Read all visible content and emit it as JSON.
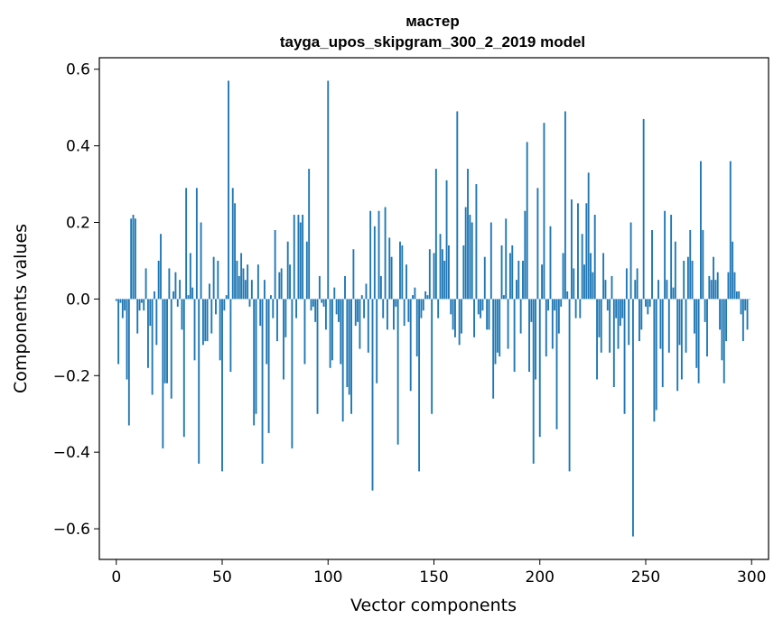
{
  "chart_data": {
    "type": "bar",
    "title": "мастер",
    "subtitle": "tayga_upos_skipgram_300_2_2019 model",
    "xlabel": "Vector components",
    "ylabel": "Components values",
    "xlim": [
      -8,
      308
    ],
    "ylim": [
      -0.68,
      0.63
    ],
    "xticks": [
      0,
      50,
      100,
      150,
      200,
      250,
      300
    ],
    "yticks": [
      -0.6,
      -0.4,
      -0.2,
      0.0,
      0.2,
      0.4,
      0.6
    ],
    "xtick_labels": [
      "0",
      "50",
      "100",
      "150",
      "200",
      "250",
      "300"
    ],
    "ytick_labels": [
      "−0.6",
      "−0.4",
      "−0.2",
      "0.0",
      "0.2",
      "0.4",
      "0.6"
    ],
    "bar_color": "#1f77b4",
    "values": [
      -0.005,
      -0.17,
      -0.01,
      -0.05,
      -0.03,
      -0.21,
      -0.33,
      0.21,
      0.22,
      0.21,
      -0.09,
      -0.03,
      -0.01,
      -0.03,
      0.08,
      -0.18,
      -0.07,
      -0.25,
      0.02,
      -0.12,
      0.1,
      0.17,
      -0.39,
      -0.22,
      -0.22,
      0.08,
      -0.26,
      0.02,
      0.07,
      -0.02,
      0.05,
      -0.08,
      -0.36,
      0.29,
      0.01,
      0.12,
      0.03,
      -0.16,
      0.29,
      -0.43,
      0.2,
      -0.12,
      -0.11,
      -0.11,
      0.04,
      -0.09,
      0.11,
      -0.04,
      0.1,
      -0.16,
      -0.45,
      -0.03,
      0.01,
      0.57,
      -0.19,
      0.29,
      0.25,
      0.1,
      0.06,
      0.12,
      0.08,
      0.05,
      0.09,
      -0.02,
      0.05,
      -0.33,
      -0.3,
      0.09,
      -0.07,
      -0.43,
      0.05,
      -0.17,
      -0.35,
      0.01,
      -0.05,
      0.18,
      -0.11,
      0.07,
      0.08,
      -0.21,
      -0.1,
      0.15,
      0.09,
      -0.39,
      0.22,
      -0.05,
      0.22,
      0.2,
      0.22,
      -0.17,
      0.15,
      0.34,
      -0.03,
      -0.02,
      -0.06,
      -0.3,
      0.06,
      -0.01,
      -0.02,
      -0.08,
      0.57,
      -0.18,
      -0.16,
      0.03,
      -0.04,
      -0.06,
      -0.17,
      -0.32,
      0.06,
      -0.23,
      -0.25,
      -0.3,
      0.13,
      -0.07,
      -0.06,
      -0.13,
      0.01,
      -0.05,
      0.04,
      -0.14,
      0.23,
      -0.5,
      0.19,
      -0.22,
      0.23,
      0.06,
      -0.05,
      0.24,
      -0.08,
      0.16,
      0.11,
      -0.08,
      -0.02,
      -0.38,
      0.15,
      0.14,
      -0.07,
      0.09,
      -0.06,
      -0.24,
      0.01,
      0.03,
      -0.15,
      -0.45,
      -0.05,
      -0.03,
      0.02,
      0.01,
      0.13,
      -0.3,
      0.12,
      0.34,
      -0.05,
      0.17,
      0.13,
      0.1,
      0.31,
      0.14,
      -0.04,
      -0.08,
      -0.1,
      0.49,
      -0.12,
      -0.09,
      0.14,
      0.24,
      0.34,
      0.22,
      0.2,
      -0.1,
      0.3,
      -0.04,
      -0.05,
      -0.03,
      0.11,
      -0.08,
      -0.08,
      0.2,
      -0.26,
      -0.17,
      -0.14,
      -0.15,
      0.14,
      0.01,
      0.21,
      -0.13,
      0.12,
      0.14,
      -0.19,
      0.05,
      0.1,
      -0.09,
      0.1,
      0.23,
      0.41,
      -0.19,
      -0.06,
      -0.43,
      -0.21,
      0.29,
      -0.36,
      0.09,
      0.46,
      -0.15,
      -0.03,
      0.19,
      -0.13,
      -0.03,
      -0.34,
      -0.09,
      -0.02,
      0.12,
      0.49,
      0.02,
      -0.45,
      0.26,
      0.08,
      -0.05,
      0.25,
      -0.05,
      0.17,
      0.09,
      0.25,
      0.33,
      0.12,
      0.07,
      0.22,
      -0.21,
      -0.1,
      -0.14,
      0.12,
      0.05,
      -0.03,
      -0.14,
      0.06,
      -0.23,
      -0.05,
      -0.13,
      -0.07,
      -0.05,
      -0.3,
      0.08,
      -0.12,
      0.2,
      -0.62,
      0.05,
      0.08,
      -0.11,
      -0.08,
      0.47,
      -0.02,
      -0.04,
      -0.02,
      0.18,
      -0.32,
      -0.29,
      0.05,
      -0.13,
      -0.23,
      0.23,
      0.05,
      -0.14,
      0.22,
      0.03,
      0.15,
      -0.24,
      -0.12,
      -0.21,
      0.1,
      -0.14,
      0.11,
      0.18,
      0.1,
      -0.09,
      -0.18,
      -0.22,
      0.36,
      0.18,
      -0.06,
      -0.15,
      0.06,
      0.05,
      0.11,
      0.05,
      0.07,
      -0.08,
      -0.16,
      -0.22,
      -0.11,
      0.07,
      0.36,
      0.15,
      0.07,
      0.02,
      0.02,
      -0.04,
      -0.11,
      -0.03,
      -0.08,
      0.0
    ]
  }
}
